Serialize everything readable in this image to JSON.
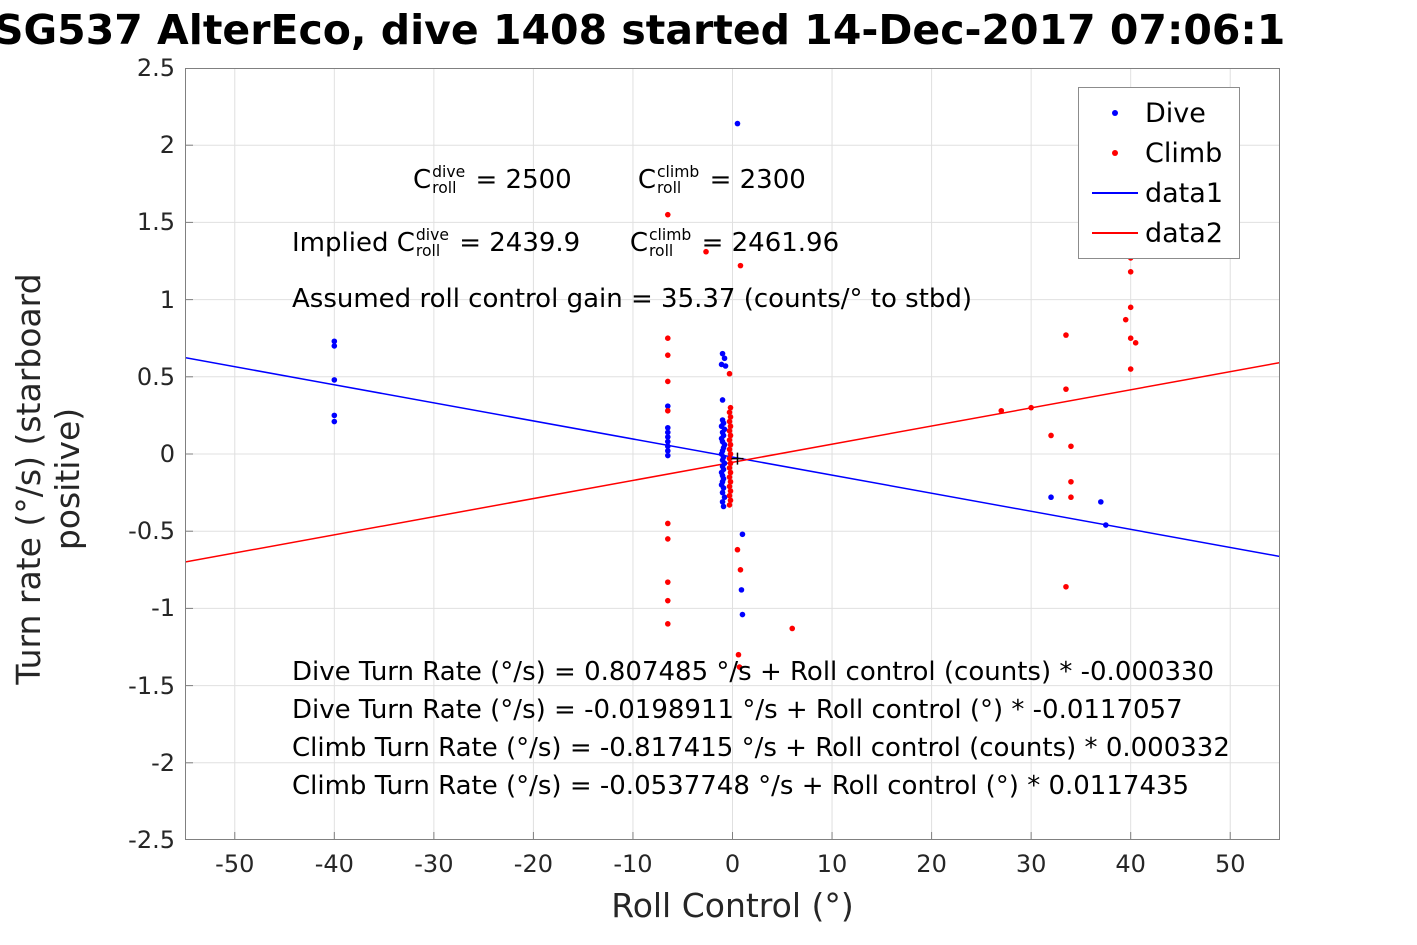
{
  "title": "SG537 AlterEco, dive 1408 started 14-Dec-2017 07:06:1",
  "chart_data": {
    "type": "scatter",
    "title": "SG537 AlterEco, dive 1408 started 14-Dec-2017 07:06:1",
    "xlabel": "Roll Control (°)",
    "ylabel": "Turn rate (°/s) (starboard positive)",
    "xlim": [
      -55,
      55
    ],
    "ylim": [
      -2.5,
      2.5
    ],
    "grid": true,
    "grid_color": "#e0e0e0",
    "box_color": "#808080",
    "x_ticks": [
      -50,
      -40,
      -30,
      -20,
      -10,
      0,
      10,
      20,
      30,
      40,
      50
    ],
    "x_tick_labels": [
      "-50",
      "-40",
      "-30",
      "-20",
      "-10",
      "0",
      "10",
      "20",
      "30",
      "40",
      "50"
    ],
    "y_ticks": [
      -2.5,
      -2,
      -1.5,
      -1,
      -0.5,
      0,
      0.5,
      1,
      1.5,
      2,
      2.5
    ],
    "y_tick_labels": [
      "-2.5",
      "-2",
      "-1.5",
      "-1",
      "-0.5",
      "0",
      "0.5",
      "1",
      "1.5",
      "2",
      "2.5"
    ],
    "legend": {
      "position": "top-right",
      "entries": [
        {
          "label": "Dive",
          "marker": "dot",
          "color": "#0000ff"
        },
        {
          "label": "Climb",
          "marker": "dot",
          "color": "#ff0000"
        },
        {
          "label": "data1",
          "marker": "line",
          "color": "#0000ff"
        },
        {
          "label": "data2",
          "marker": "line",
          "color": "#ff0000"
        }
      ]
    },
    "series": [
      {
        "name": "Dive",
        "type": "scatter",
        "color": "#0000ff",
        "points": [
          [
            -40,
            0.73
          ],
          [
            -40,
            0.7
          ],
          [
            -40,
            0.48
          ],
          [
            -40,
            0.25
          ],
          [
            -40,
            0.21
          ],
          [
            -6.5,
            0.31
          ],
          [
            -6.5,
            0.17
          ],
          [
            -6.5,
            0.14
          ],
          [
            -6.5,
            0.11
          ],
          [
            -6.5,
            0.08
          ],
          [
            -6.5,
            0.05
          ],
          [
            -6.5,
            0.02
          ],
          [
            -6.5,
            -0.01
          ],
          [
            0.5,
            2.14
          ],
          [
            -1,
            0.65
          ],
          [
            -0.8,
            0.62
          ],
          [
            -1.1,
            0.58
          ],
          [
            -0.7,
            0.57
          ],
          [
            -1,
            0.35
          ],
          [
            -1,
            0.22
          ],
          [
            -0.9,
            0.2
          ],
          [
            -1.1,
            0.18
          ],
          [
            -0.8,
            0.16
          ],
          [
            -1,
            0.14
          ],
          [
            -0.9,
            0.12
          ],
          [
            -1.1,
            0.1
          ],
          [
            -1,
            0.08
          ],
          [
            -0.8,
            0.06
          ],
          [
            -0.9,
            0.04
          ],
          [
            -1,
            0.02
          ],
          [
            -1.1,
            0.0
          ],
          [
            -0.9,
            -0.02
          ],
          [
            -1,
            -0.04
          ],
          [
            -0.8,
            -0.06
          ],
          [
            -1,
            -0.08
          ],
          [
            -0.9,
            -0.1
          ],
          [
            -1.1,
            -0.12
          ],
          [
            -1,
            -0.14
          ],
          [
            -0.9,
            -0.16
          ],
          [
            -1,
            -0.18
          ],
          [
            -1.1,
            -0.2
          ],
          [
            -0.9,
            -0.22
          ],
          [
            -1,
            -0.25
          ],
          [
            -0.8,
            -0.28
          ],
          [
            -1,
            -0.31
          ],
          [
            -0.9,
            -0.34
          ],
          [
            1,
            -0.52
          ],
          [
            0.9,
            -0.88
          ],
          [
            1,
            -1.04
          ],
          [
            32,
            -0.28
          ],
          [
            37,
            -0.31
          ],
          [
            37.5,
            -0.46
          ]
        ]
      },
      {
        "name": "Climb",
        "type": "scatter",
        "color": "#ff0000",
        "points": [
          [
            -6.5,
            1.55
          ],
          [
            -6.5,
            0.75
          ],
          [
            -6.5,
            0.64
          ],
          [
            -6.5,
            0.47
          ],
          [
            -6.5,
            0.28
          ],
          [
            -6.5,
            -0.45
          ],
          [
            -6.5,
            -0.55
          ],
          [
            -6.5,
            -0.83
          ],
          [
            -6.5,
            -0.95
          ],
          [
            -6.5,
            -1.1
          ],
          [
            -2.66,
            1.31
          ],
          [
            -0.3,
            0.52
          ],
          [
            -0.2,
            0.3
          ],
          [
            -0.3,
            0.27
          ],
          [
            -0.2,
            0.24
          ],
          [
            -0.3,
            0.21
          ],
          [
            -0.2,
            0.18
          ],
          [
            -0.3,
            0.15
          ],
          [
            -0.2,
            0.12
          ],
          [
            -0.3,
            0.09
          ],
          [
            -0.2,
            0.06
          ],
          [
            -0.3,
            0.03
          ],
          [
            -0.2,
            0.0
          ],
          [
            -0.3,
            -0.03
          ],
          [
            -0.2,
            -0.06
          ],
          [
            -0.3,
            -0.09
          ],
          [
            -0.2,
            -0.12
          ],
          [
            -0.3,
            -0.15
          ],
          [
            -0.2,
            -0.18
          ],
          [
            -0.3,
            -0.21
          ],
          [
            -0.2,
            -0.24
          ],
          [
            -0.3,
            -0.27
          ],
          [
            -0.2,
            -0.3
          ],
          [
            -0.3,
            -0.33
          ],
          [
            0.8,
            1.22
          ],
          [
            0.5,
            -0.62
          ],
          [
            0.8,
            -0.75
          ],
          [
            0.6,
            -1.3
          ],
          [
            0.7,
            -1.38
          ],
          [
            6,
            -1.13
          ],
          [
            27,
            0.28
          ],
          [
            30,
            0.3
          ],
          [
            32,
            0.12
          ],
          [
            33.5,
            0.77
          ],
          [
            33.5,
            0.42
          ],
          [
            34,
            0.05
          ],
          [
            34,
            -0.18
          ],
          [
            34,
            -0.28
          ],
          [
            33.5,
            -0.86
          ],
          [
            40,
            1.27
          ],
          [
            40,
            1.18
          ],
          [
            40,
            0.95
          ],
          [
            39.5,
            0.87
          ],
          [
            40,
            0.75
          ],
          [
            40.5,
            0.72
          ],
          [
            40,
            0.55
          ]
        ]
      }
    ],
    "lines": [
      {
        "name": "data1",
        "color": "#0000ff",
        "intercept": -0.0198911,
        "slope": -0.0117057
      },
      {
        "name": "data2",
        "color": "#ff0000",
        "intercept": -0.0537748,
        "slope": 0.0117435
      }
    ],
    "origin_marker": {
      "x": 0.5,
      "y": -0.03,
      "symbol": "+",
      "color": "#000000"
    }
  },
  "annotations": {
    "c_values": {
      "segments": [
        {
          "t": "C"
        },
        {
          "sup": "dive",
          "sub": "roll"
        },
        {
          "t": " = 2500        "
        },
        {
          "t": "C"
        },
        {
          "sup": "climb",
          "sub": "roll"
        },
        {
          "t": " = 2300"
        }
      ]
    },
    "implied": {
      "segments": [
        {
          "t": "Implied C"
        },
        {
          "sup": "dive",
          "sub": "roll"
        },
        {
          "t": " = 2439.9      "
        },
        {
          "t": "C"
        },
        {
          "sup": "climb",
          "sub": "roll"
        },
        {
          "t": " = 2461.96"
        }
      ]
    },
    "gain": {
      "segments": [
        {
          "t": "Assumed roll control gain = 35.37 (counts/° to stbd)"
        }
      ]
    },
    "equations": [
      "Dive Turn Rate (°/s) = 0.807485 °/s + Roll control (counts) * -0.000330",
      "Dive Turn Rate (°/s) = -0.0198911 °/s + Roll control (°) * -0.0117057",
      "Climb Turn Rate (°/s) = -0.817415 °/s + Roll control (counts) * 0.000332",
      "Climb Turn Rate (°/s) = -0.0537748 °/s + Roll control (°) * 0.0117435"
    ]
  }
}
